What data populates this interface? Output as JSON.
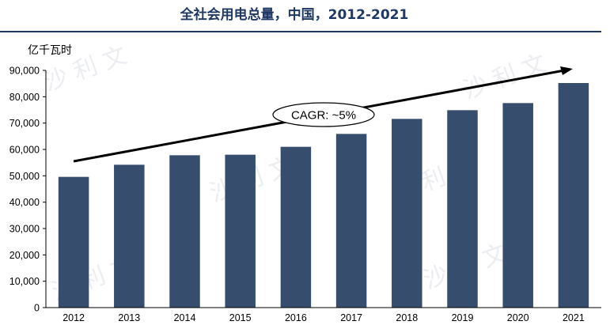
{
  "chart_data": {
    "type": "bar",
    "title": "全社会用电总量，中国，2012-2021",
    "ylabel": "亿千瓦时",
    "xlabel": "",
    "categories": [
      "2012",
      "2013",
      "2014",
      "2015",
      "2016",
      "2017",
      "2018",
      "2019",
      "2020",
      "2021"
    ],
    "values": [
      49600,
      54200,
      57800,
      58000,
      61000,
      65900,
      71600,
      74900,
      77600,
      85200
    ],
    "ylim": [
      0,
      90000
    ],
    "yticks": [
      0,
      10000,
      20000,
      30000,
      40000,
      50000,
      60000,
      70000,
      80000,
      90000
    ],
    "ytick_labels": [
      "0",
      "10,000",
      "20,000",
      "30,000",
      "40,000",
      "50,000",
      "60,000",
      "70,000",
      "80,000",
      "90,000"
    ],
    "bar_color": "#364d6e",
    "grid": false,
    "annotation": {
      "text": "CAGR: ~5%",
      "from_year": "2012",
      "to_year": "2021"
    }
  },
  "colors": {
    "title": "#1f3864",
    "title_rule": "#1f3864",
    "bar": "#364d6e"
  },
  "watermark": {
    "text": "沙 利 文"
  }
}
